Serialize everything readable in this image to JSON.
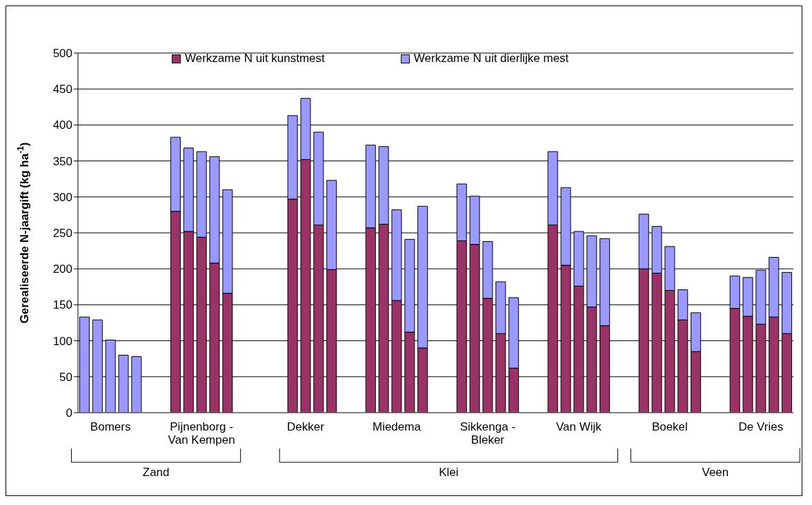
{
  "chart_data": {
    "type": "bar",
    "stacked": true,
    "ylabel": "Gerealiseerde N-jaargift (kg ha$^{-1}$)",
    "categories": [
      null,
      null,
      "Bomers",
      null,
      null,
      null,
      null,
      null,
      null,
      "Pijnenborg - Van Kempen",
      null,
      null,
      null,
      null,
      null,
      null,
      null,
      "Dekker",
      null,
      null,
      null,
      null,
      null,
      null,
      "Miedema",
      null,
      null,
      null,
      null,
      null,
      null,
      "Sikkenga - Bleker",
      null,
      null,
      null,
      null,
      null,
      null,
      "Van Wijk",
      null,
      null,
      null,
      null,
      null,
      null,
      "Boekel",
      null,
      null,
      null,
      null,
      null,
      null,
      "De Vries",
      null,
      null
    ],
    "series": [
      {
        "name": "Werkzame N uit kunstmest",
        "color": "#993366",
        "values": [
          null,
          null,
          null,
          null,
          null,
          null,
          null,
          280,
          252,
          244,
          208,
          166,
          null,
          null,
          null,
          null,
          297,
          352,
          261,
          199,
          null,
          null,
          257,
          262,
          156,
          112,
          90,
          null,
          null,
          239,
          234,
          159,
          110,
          62,
          null,
          null,
          261,
          205,
          176,
          147,
          121,
          null,
          null,
          200,
          194,
          170,
          129,
          85,
          null,
          null,
          145,
          134,
          123,
          133,
          110
        ]
      },
      {
        "name": "Werkzame N uit dierlijke mest",
        "color": "#9999ff",
        "values": [
          133,
          129,
          101,
          80,
          78,
          null,
          null,
          103,
          116,
          119,
          148,
          144,
          null,
          null,
          null,
          null,
          116,
          85,
          129,
          124,
          null,
          null,
          115,
          108,
          126,
          129,
          197,
          null,
          null,
          79,
          67,
          79,
          72,
          98,
          null,
          null,
          102,
          108,
          76,
          99,
          121,
          null,
          null,
          76,
          65,
          61,
          42,
          54,
          null,
          null,
          45,
          54,
          75,
          83,
          85
        ]
      }
    ],
    "ylim": [
      0,
      500
    ],
    "yticks": [
      0,
      50,
      100,
      150,
      200,
      250,
      300,
      350,
      400,
      450,
      500
    ],
    "grid": "y",
    "legend": "top",
    "annotations": [
      "Zand",
      "Klei",
      "Veen"
    ]
  }
}
